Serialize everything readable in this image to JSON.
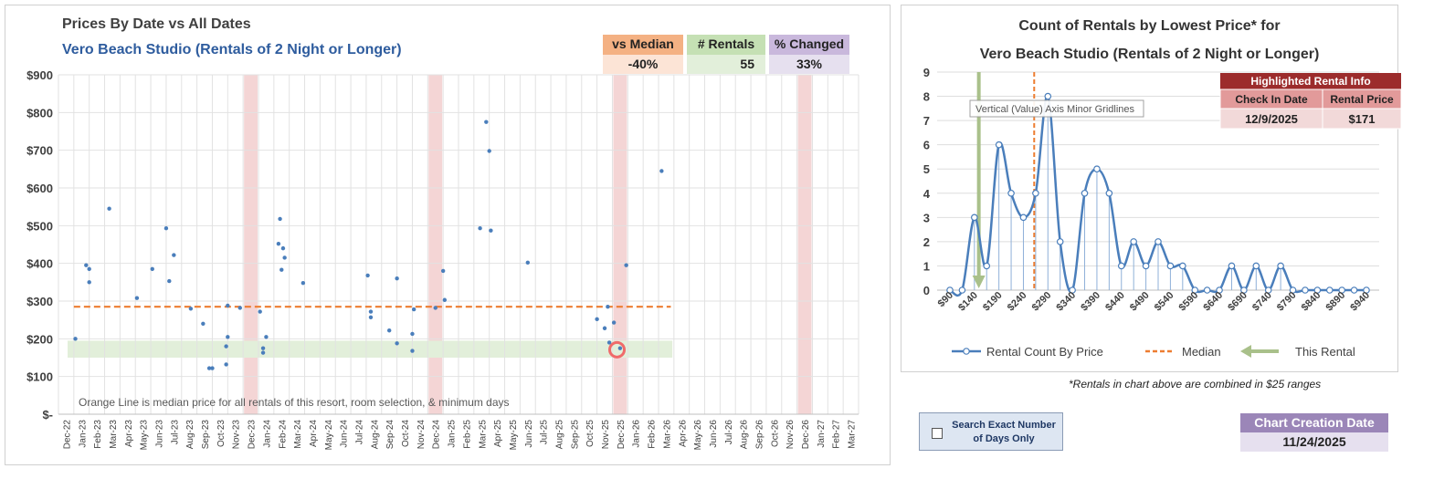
{
  "left_chart": {
    "title": "Prices By Date vs All Dates",
    "subtitle": "Vero Beach Studio (Rentals of 2 Night or Longer)",
    "note": "Orange Line is median price for all rentals of this resort, room selection, & minimum days",
    "stats": [
      {
        "label": "vs Median",
        "value": "-40%",
        "head_color": "#f4b183",
        "value_color": "#fce4d6"
      },
      {
        "label": "# Rentals",
        "value": "55",
        "head_color": "#c5e0b4",
        "value_color": "#e2efda"
      },
      {
        "label": "% Changed",
        "value": "33%",
        "head_color": "#c9b8dc",
        "value_color": "#e6e0ef"
      }
    ]
  },
  "right_chart": {
    "title_line1": "Count of Rentals by Lowest Price* for",
    "title_line2": "Vero Beach Studio (Rentals of 2 Night or Longer)",
    "tooltip": "Vertical (Value) Axis Minor Gridlines",
    "highlight": {
      "title": "Highlighted Rental Info",
      "col1": "Check In Date",
      "col2": "Rental Price",
      "val1": "12/9/2025",
      "val2": "$171"
    },
    "footnote": "*Rentals in chart above are combined in $25 ranges"
  },
  "controls": {
    "search_label": "Search Exact Number of Days Only",
    "creation_label": "Chart Creation Date",
    "creation_date": "11/24/2025"
  },
  "chart_data": [
    {
      "type": "scatter",
      "title": "Prices By Date vs All Dates",
      "subtitle": "Vero Beach Studio (Rentals of 2 Night or Longer)",
      "y_ticks": [
        "$-",
        "$100",
        "$200",
        "$300",
        "$400",
        "$500",
        "$600",
        "$700",
        "$800",
        "$900"
      ],
      "ylim": [
        0,
        900
      ],
      "x_ticks": [
        "Dec-22",
        "Jan-23",
        "Feb-23",
        "Mar-23",
        "Apr-23",
        "May-23",
        "Jun-23",
        "Jul-23",
        "Aug-23",
        "Sep-23",
        "Oct-23",
        "Nov-23",
        "Dec-23",
        "Jan-24",
        "Feb-24",
        "Mar-24",
        "Apr-24",
        "May-24",
        "Jun-24",
        "Jul-24",
        "Aug-24",
        "Sep-24",
        "Oct-24",
        "Nov-24",
        "Dec-24",
        "Jan-25",
        "Feb-25",
        "Mar-25",
        "Apr-25",
        "May-25",
        "Jun-25",
        "Jul-25",
        "Aug-25",
        "Sep-25",
        "Oct-25",
        "Nov-25",
        "Dec-25",
        "Jan-26",
        "Feb-26",
        "Mar-26",
        "Apr-26",
        "May-26",
        "Jun-26",
        "Jul-26",
        "Aug-26",
        "Sep-26",
        "Oct-26",
        "Nov-26",
        "Dec-26",
        "Jan-27",
        "Feb-27",
        "Mar-27"
      ],
      "median": 285,
      "median_color": "#ed7d31",
      "point_color": "#4a7ebb",
      "highlight_band": [
        150,
        195
      ],
      "highlight_band_color": "#e2efda",
      "shaded_months": [
        "Dec-23",
        "Dec-24",
        "Dec-25",
        "Dec-26"
      ],
      "highlight_point": {
        "x": 36.3,
        "y": 171
      },
      "points": [
        {
          "x": 1.1,
          "y": 200
        },
        {
          "x": 1.8,
          "y": 395
        },
        {
          "x": 2.0,
          "y": 385
        },
        {
          "x": 2.0,
          "y": 350
        },
        {
          "x": 3.3,
          "y": 545
        },
        {
          "x": 5.1,
          "y": 308
        },
        {
          "x": 6.1,
          "y": 385
        },
        {
          "x": 7.0,
          "y": 493
        },
        {
          "x": 7.2,
          "y": 353
        },
        {
          "x": 7.5,
          "y": 422
        },
        {
          "x": 8.6,
          "y": 280
        },
        {
          "x": 9.4,
          "y": 240
        },
        {
          "x": 9.8,
          "y": 122
        },
        {
          "x": 10.0,
          "y": 122
        },
        {
          "x": 10.9,
          "y": 132
        },
        {
          "x": 10.9,
          "y": 180
        },
        {
          "x": 11.0,
          "y": 205
        },
        {
          "x": 11.0,
          "y": 288
        },
        {
          "x": 11.8,
          "y": 282
        },
        {
          "x": 13.1,
          "y": 272
        },
        {
          "x": 13.3,
          "y": 175
        },
        {
          "x": 13.3,
          "y": 163
        },
        {
          "x": 13.5,
          "y": 205
        },
        {
          "x": 14.3,
          "y": 452
        },
        {
          "x": 14.4,
          "y": 518
        },
        {
          "x": 14.5,
          "y": 383
        },
        {
          "x": 14.6,
          "y": 440
        },
        {
          "x": 14.7,
          "y": 415
        },
        {
          "x": 15.9,
          "y": 348
        },
        {
          "x": 20.1,
          "y": 368
        },
        {
          "x": 20.3,
          "y": 257
        },
        {
          "x": 20.3,
          "y": 272
        },
        {
          "x": 21.5,
          "y": 222
        },
        {
          "x": 22.0,
          "y": 188
        },
        {
          "x": 22.0,
          "y": 360
        },
        {
          "x": 23.0,
          "y": 168
        },
        {
          "x": 23.0,
          "y": 213
        },
        {
          "x": 23.1,
          "y": 278
        },
        {
          "x": 24.5,
          "y": 282
        },
        {
          "x": 25.0,
          "y": 380
        },
        {
          "x": 25.1,
          "y": 303
        },
        {
          "x": 27.4,
          "y": 493
        },
        {
          "x": 27.8,
          "y": 775
        },
        {
          "x": 28.0,
          "y": 698
        },
        {
          "x": 28.1,
          "y": 487
        },
        {
          "x": 30.5,
          "y": 402
        },
        {
          "x": 35.0,
          "y": 252
        },
        {
          "x": 35.5,
          "y": 228
        },
        {
          "x": 35.7,
          "y": 285
        },
        {
          "x": 35.8,
          "y": 190
        },
        {
          "x": 36.1,
          "y": 243
        },
        {
          "x": 36.5,
          "y": 175
        },
        {
          "x": 36.9,
          "y": 395
        },
        {
          "x": 39.2,
          "y": 645
        }
      ]
    },
    {
      "type": "line",
      "title": "Count of Rentals by Lowest Price* for",
      "subtitle": "Vero Beach Studio (Rentals of 2 Night or Longer)",
      "x_ticks": [
        "$90",
        "$140",
        "$190",
        "$240",
        "$290",
        "$340",
        "$390",
        "$440",
        "$490",
        "$540",
        "$590",
        "$640",
        "$690",
        "$740",
        "$790",
        "$840",
        "$890",
        "$940"
      ],
      "x": [
        90,
        115,
        140,
        165,
        190,
        215,
        240,
        265,
        290,
        315,
        340,
        365,
        390,
        415,
        440,
        465,
        490,
        515,
        540,
        565,
        590,
        615,
        640,
        665,
        690,
        715,
        740,
        765,
        790,
        815,
        840,
        865,
        890,
        915,
        940
      ],
      "ylim": [
        0,
        9
      ],
      "y_ticks": [
        "0",
        "1",
        "2",
        "3",
        "4",
        "5",
        "6",
        "7",
        "8",
        "9"
      ],
      "series": [
        {
          "name": "Rental Count By Price",
          "color": "#4a7ebb",
          "values": [
            0,
            0,
            3,
            1,
            6,
            4,
            3,
            4,
            8,
            2,
            0,
            4,
            5,
            4,
            1,
            2,
            1,
            2,
            1,
            1,
            0,
            0,
            0,
            1,
            0,
            1,
            0,
            1,
            0,
            0,
            0,
            0,
            0,
            0,
            0
          ]
        }
      ],
      "median_x": 262,
      "median_name": "Median",
      "median_color": "#ed7d31",
      "this_rental_x": 149,
      "this_rental_name": "This Rental",
      "this_rental_color": "#a9c08a",
      "legend_position": "bottom"
    }
  ]
}
